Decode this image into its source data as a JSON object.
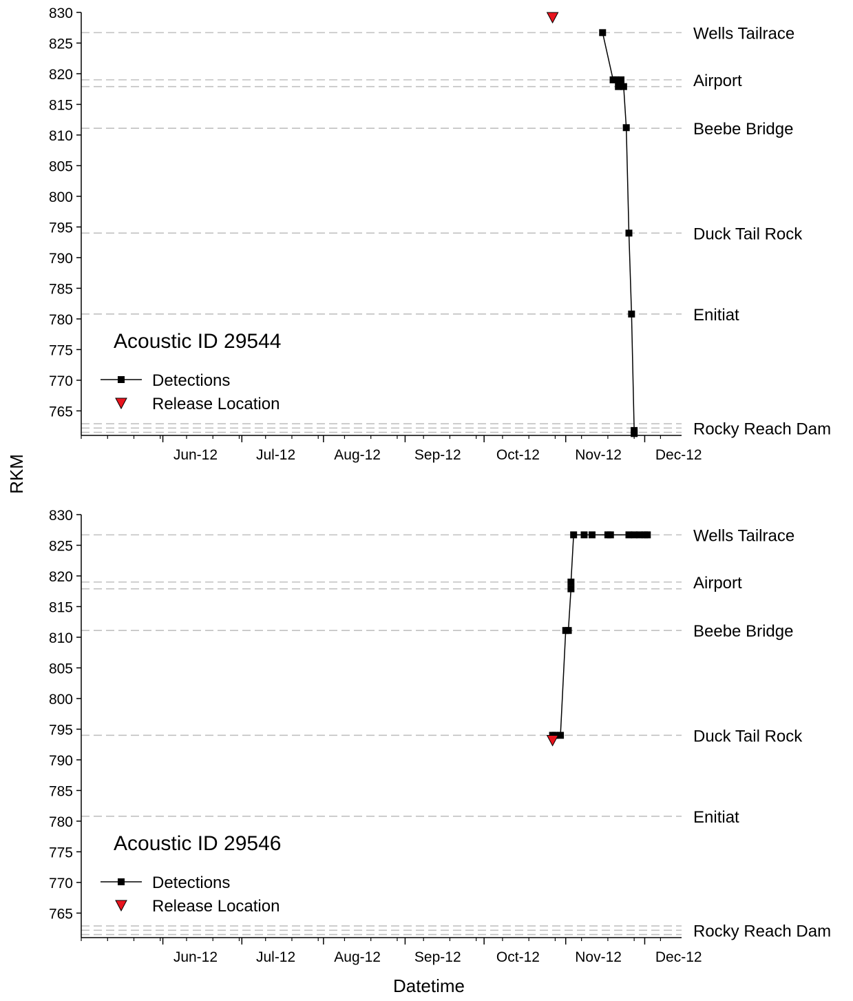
{
  "y_axis_label": "RKM",
  "x_axis_label": "Datetime",
  "chart_data": [
    {
      "type": "line",
      "title": "Acoustic ID 29544",
      "xlabel": "Datetime",
      "ylabel": "RKM",
      "xlim": [
        "2012-05-01",
        "2012-12-15"
      ],
      "ylim": [
        761,
        830
      ],
      "x_ticks": [
        "Jun-12",
        "Jul-12",
        "Aug-12",
        "Sep-12",
        "Oct-12",
        "Nov-12",
        "Dec-12"
      ],
      "y_ticks": [
        765,
        770,
        775,
        780,
        785,
        790,
        795,
        800,
        805,
        810,
        815,
        820,
        825,
        830
      ],
      "legend": [
        "Detections",
        "Release Location"
      ],
      "legend_position": "bottom-left",
      "reference_lines": [
        {
          "name": "Wells Tailrace",
          "rkm": 826.7
        },
        {
          "name": "Airport",
          "rkm": 819.0
        },
        {
          "name": "",
          "rkm": 817.9
        },
        {
          "name": "Beebe Bridge",
          "rkm": 811.1
        },
        {
          "name": "Duck Tail Rock",
          "rkm": 794.0
        },
        {
          "name": "Enitiat",
          "rkm": 780.8
        },
        {
          "name": "",
          "rkm": 762.9
        },
        {
          "name": "Rocky Reach Dam",
          "rkm": 762.2
        },
        {
          "name": "",
          "rkm": 761.5
        }
      ],
      "series": [
        {
          "name": "Detections",
          "points": [
            {
              "x": "2012-11-15",
              "y": 826.7
            },
            {
              "x": "2012-11-19",
              "y": 819.0
            },
            {
              "x": "2012-11-20",
              "y": 819.0
            },
            {
              "x": "2012-11-21",
              "y": 817.9
            },
            {
              "x": "2012-11-22",
              "y": 819.0
            },
            {
              "x": "2012-11-23",
              "y": 817.9
            },
            {
              "x": "2012-11-24",
              "y": 811.2
            },
            {
              "x": "2012-11-25",
              "y": 794.0
            },
            {
              "x": "2012-11-26",
              "y": 780.8
            },
            {
              "x": "2012-11-27",
              "y": 761.8
            },
            {
              "x": "2012-11-27",
              "y": 761.3
            }
          ]
        },
        {
          "name": "Release Location",
          "points": [
            {
              "x": "2012-10-27",
              "y": 829.2
            }
          ]
        }
      ]
    },
    {
      "type": "line",
      "title": "Acoustic ID 29546",
      "xlabel": "Datetime",
      "ylabel": "RKM",
      "xlim": [
        "2012-05-01",
        "2012-12-15"
      ],
      "ylim": [
        761,
        830
      ],
      "x_ticks": [
        "Jun-12",
        "Jul-12",
        "Aug-12",
        "Sep-12",
        "Oct-12",
        "Nov-12",
        "Dec-12"
      ],
      "y_ticks": [
        765,
        770,
        775,
        780,
        785,
        790,
        795,
        800,
        805,
        810,
        815,
        820,
        825,
        830
      ],
      "legend": [
        "Detections",
        "Release Location"
      ],
      "legend_position": "bottom-left",
      "reference_lines": [
        {
          "name": "Wells Tailrace",
          "rkm": 826.7
        },
        {
          "name": "Airport",
          "rkm": 819.0
        },
        {
          "name": "",
          "rkm": 817.9
        },
        {
          "name": "Beebe Bridge",
          "rkm": 811.1
        },
        {
          "name": "Duck Tail Rock",
          "rkm": 794.0
        },
        {
          "name": "Enitiat",
          "rkm": 780.8
        },
        {
          "name": "",
          "rkm": 762.9
        },
        {
          "name": "Rocky Reach Dam",
          "rkm": 762.2
        },
        {
          "name": "",
          "rkm": 761.5
        }
      ],
      "series": [
        {
          "name": "Detections",
          "points": [
            {
              "x": "2012-10-27",
              "y": 794.0
            },
            {
              "x": "2012-10-28",
              "y": 794.0
            },
            {
              "x": "2012-10-30",
              "y": 794.0
            },
            {
              "x": "2012-11-01",
              "y": 811.1
            },
            {
              "x": "2012-11-02",
              "y": 811.1
            },
            {
              "x": "2012-11-03",
              "y": 817.9
            },
            {
              "x": "2012-11-03",
              "y": 819.0
            },
            {
              "x": "2012-11-04",
              "y": 826.7
            },
            {
              "x": "2012-11-08",
              "y": 826.7
            },
            {
              "x": "2012-11-11",
              "y": 826.7
            },
            {
              "x": "2012-11-17",
              "y": 826.7
            },
            {
              "x": "2012-11-18",
              "y": 826.7
            },
            {
              "x": "2012-11-25",
              "y": 826.7
            },
            {
              "x": "2012-11-27",
              "y": 826.7
            },
            {
              "x": "2012-11-29",
              "y": 826.7
            },
            {
              "x": "2012-12-01",
              "y": 826.7
            },
            {
              "x": "2012-12-02",
              "y": 826.7
            }
          ]
        },
        {
          "name": "Release Location",
          "points": [
            {
              "x": "2012-10-27",
              "y": 793.2
            }
          ]
        }
      ]
    }
  ],
  "colors": {
    "line": "#000000",
    "marker": "#000000",
    "release_marker": "#e8141e",
    "reference_line": "#c0c0c0"
  }
}
